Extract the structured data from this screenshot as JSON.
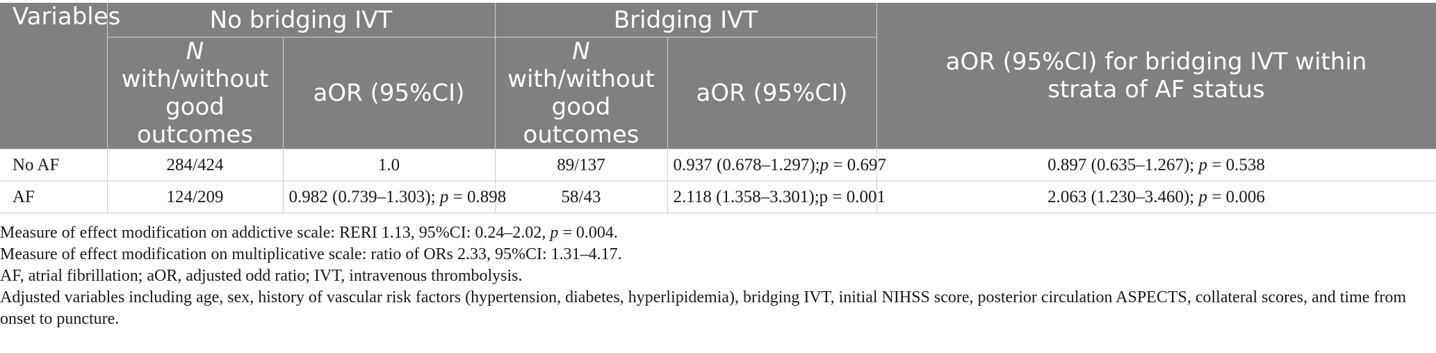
{
  "table": {
    "header_row1": {
      "variables": "Variables",
      "no_bridging": "No bridging IVT",
      "bridging": "Bridging IVT",
      "aor_strata": "aOR (95%CI) for bridging IVT within strata of AF status"
    },
    "header_row2": {
      "n_prefix": "N",
      "n_rest": "with/without good outcomes",
      "aor": "aOR (95%CI)"
    },
    "rows": [
      {
        "variable": "No AF",
        "nb_n": "284/424",
        "nb_aor": "1.0",
        "nb_aor_p": "",
        "b_n": "89/137",
        "b_aor": "0.937 (0.678–1.297);",
        "b_aor_p": "p",
        "b_aor_pval": " = 0.697",
        "strata": "0.897 (0.635–1.267); ",
        "strata_p": "p",
        "strata_pval": " = 0.538"
      },
      {
        "variable": "AF",
        "nb_n": "124/209",
        "nb_aor": "0.982 (0.739–1.303); ",
        "nb_aor_p": "p",
        "nb_aor_pval": " = 0.898",
        "b_n": "58/43",
        "b_aor": "2.118 (1.358–3.301);",
        "b_aor_p": "p",
        "b_aor_pval": " = 0.001",
        "strata": "2.063 (1.230–3.460); ",
        "strata_p": "p",
        "strata_pval": " = 0.006"
      }
    ]
  },
  "notes": {
    "line1_a": "Measure of effect modification on addictive scale: RERI 1.13, 95%CI: 0.24–2.02, ",
    "line1_p": "p",
    "line1_b": " = 0.004.",
    "line2": "Measure of effect modification on multiplicative scale: ratio of ORs 2.33, 95%CI: 1.31–4.17.",
    "line3": "AF, atrial fibrillation; aOR, adjusted odd ratio; IVT, intravenous thrombolysis.",
    "line4": "Adjusted variables including age, sex, history of vascular risk factors (hypertension, diabetes, hyperlipidemia), bridging IVT, initial NIHSS score, posterior circulation ASPECTS, collateral scores, and time from onset to puncture."
  }
}
